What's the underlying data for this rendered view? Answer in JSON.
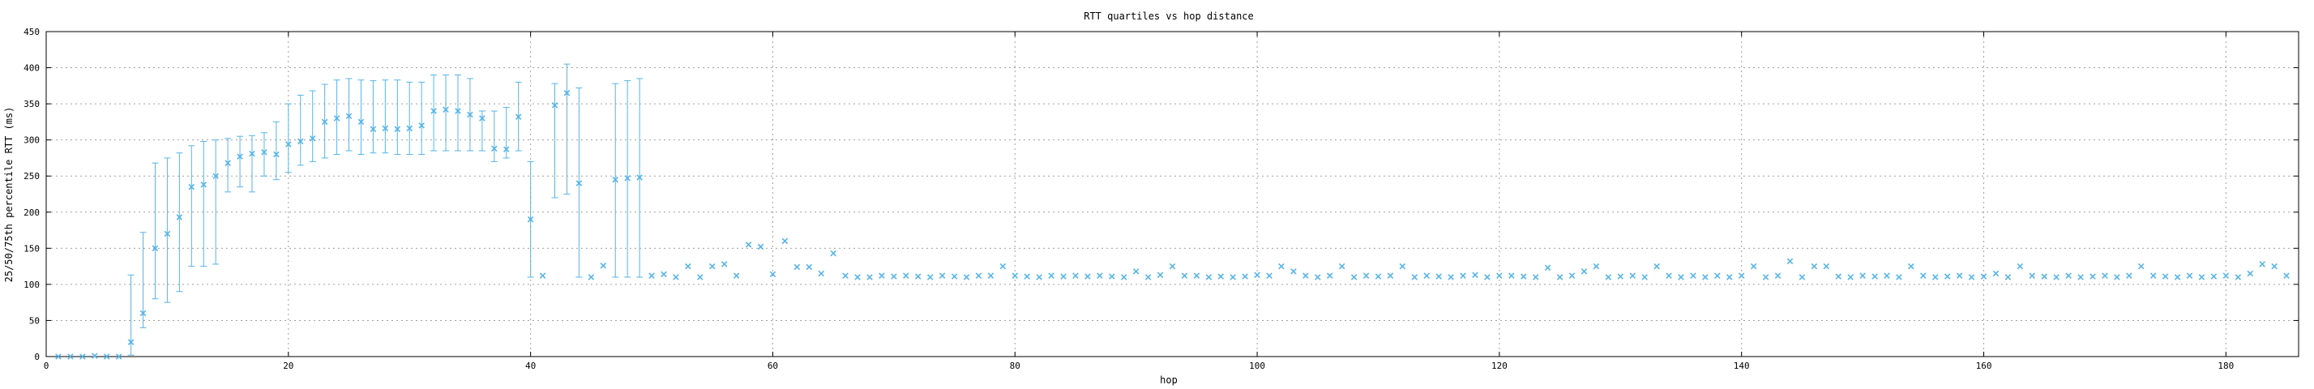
{
  "chart_data": {
    "type": "scatter",
    "title": "RTT quartiles vs hop distance",
    "xlabel": "hop",
    "ylabel": "25/50/75th percentile RTT (ms)",
    "xlim": [
      0,
      186
    ],
    "ylim": [
      0,
      450
    ],
    "xticks": [
      0,
      20,
      40,
      60,
      80,
      100,
      120,
      140,
      160,
      180
    ],
    "yticks": [
      0,
      50,
      100,
      150,
      200,
      250,
      300,
      350,
      400,
      450
    ],
    "grid": true,
    "series": [
      {
        "color": "#56b4e9",
        "marker": "x",
        "points": [
          {
            "x": 1,
            "y": 0
          },
          {
            "x": 2,
            "y": 0
          },
          {
            "x": 3,
            "y": 0
          },
          {
            "x": 4,
            "y": 1
          },
          {
            "x": 5,
            "y": 0
          },
          {
            "x": 6,
            "y": 0
          },
          {
            "x": 7,
            "y": 20,
            "lo": 2,
            "hi": 113
          },
          {
            "x": 8,
            "y": 60,
            "lo": 40,
            "hi": 172
          },
          {
            "x": 9,
            "y": 150,
            "lo": 80,
            "hi": 268
          },
          {
            "x": 10,
            "y": 170,
            "lo": 75,
            "hi": 275
          },
          {
            "x": 11,
            "y": 193,
            "lo": 90,
            "hi": 282
          },
          {
            "x": 12,
            "y": 235,
            "lo": 125,
            "hi": 292
          },
          {
            "x": 13,
            "y": 238,
            "lo": 125,
            "hi": 298
          },
          {
            "x": 14,
            "y": 250,
            "lo": 128,
            "hi": 300
          },
          {
            "x": 15,
            "y": 268,
            "lo": 228,
            "hi": 302
          },
          {
            "x": 16,
            "y": 277,
            "lo": 235,
            "hi": 305
          },
          {
            "x": 17,
            "y": 281,
            "lo": 228,
            "hi": 306
          },
          {
            "x": 18,
            "y": 283,
            "lo": 250,
            "hi": 310
          },
          {
            "x": 19,
            "y": 280,
            "lo": 245,
            "hi": 325
          },
          {
            "x": 20,
            "y": 294,
            "lo": 255,
            "hi": 350
          },
          {
            "x": 21,
            "y": 298,
            "lo": 265,
            "hi": 362
          },
          {
            "x": 22,
            "y": 302,
            "lo": 270,
            "hi": 368
          },
          {
            "x": 23,
            "y": 325,
            "lo": 275,
            "hi": 377
          },
          {
            "x": 24,
            "y": 330,
            "lo": 280,
            "hi": 383
          },
          {
            "x": 25,
            "y": 333,
            "lo": 285,
            "hi": 385
          },
          {
            "x": 26,
            "y": 325,
            "lo": 280,
            "hi": 383
          },
          {
            "x": 27,
            "y": 315,
            "lo": 282,
            "hi": 382
          },
          {
            "x": 28,
            "y": 316,
            "lo": 282,
            "hi": 383
          },
          {
            "x": 29,
            "y": 315,
            "lo": 280,
            "hi": 383
          },
          {
            "x": 30,
            "y": 316,
            "lo": 280,
            "hi": 380
          },
          {
            "x": 31,
            "y": 320,
            "lo": 280,
            "hi": 380
          },
          {
            "x": 32,
            "y": 340,
            "lo": 285,
            "hi": 390
          },
          {
            "x": 33,
            "y": 342,
            "lo": 285,
            "hi": 390
          },
          {
            "x": 34,
            "y": 340,
            "lo": 285,
            "hi": 390
          },
          {
            "x": 35,
            "y": 335,
            "lo": 285,
            "hi": 385
          },
          {
            "x": 36,
            "y": 330,
            "lo": 285,
            "hi": 340
          },
          {
            "x": 37,
            "y": 288,
            "lo": 270,
            "hi": 340
          },
          {
            "x": 38,
            "y": 287,
            "lo": 275,
            "hi": 345
          },
          {
            "x": 39,
            "y": 332,
            "lo": 285,
            "hi": 380
          },
          {
            "x": 40,
            "y": 190,
            "lo": 110,
            "hi": 270
          },
          {
            "x": 41,
            "y": 112
          },
          {
            "x": 42,
            "y": 348,
            "lo": 220,
            "hi": 378
          },
          {
            "x": 43,
            "y": 365,
            "lo": 225,
            "hi": 405
          },
          {
            "x": 44,
            "y": 240,
            "lo": 110,
            "hi": 372
          },
          {
            "x": 45,
            "y": 110
          },
          {
            "x": 46,
            "y": 126
          },
          {
            "x": 47,
            "y": 245,
            "lo": 110,
            "hi": 378
          },
          {
            "x": 48,
            "y": 247,
            "lo": 110,
            "hi": 382
          },
          {
            "x": 49,
            "y": 248,
            "lo": 110,
            "hi": 385
          },
          {
            "x": 50,
            "y": 112
          },
          {
            "x": 51,
            "y": 114
          },
          {
            "x": 52,
            "y": 110
          },
          {
            "x": 53,
            "y": 125
          },
          {
            "x": 54,
            "y": 110
          },
          {
            "x": 55,
            "y": 125
          },
          {
            "x": 56,
            "y": 128
          },
          {
            "x": 57,
            "y": 112
          },
          {
            "x": 58,
            "y": 155
          },
          {
            "x": 59,
            "y": 152
          },
          {
            "x": 60,
            "y": 114
          },
          {
            "x": 61,
            "y": 160
          },
          {
            "x": 62,
            "y": 124
          },
          {
            "x": 63,
            "y": 124
          },
          {
            "x": 64,
            "y": 115
          },
          {
            "x": 65,
            "y": 143
          },
          {
            "x": 66,
            "y": 112
          },
          {
            "x": 67,
            "y": 110
          },
          {
            "x": 68,
            "y": 110
          },
          {
            "x": 69,
            "y": 112
          },
          {
            "x": 70,
            "y": 111
          },
          {
            "x": 71,
            "y": 112
          },
          {
            "x": 72,
            "y": 111
          },
          {
            "x": 73,
            "y": 110
          },
          {
            "x": 74,
            "y": 112
          },
          {
            "x": 75,
            "y": 111
          },
          {
            "x": 76,
            "y": 110
          },
          {
            "x": 77,
            "y": 112
          },
          {
            "x": 78,
            "y": 112
          },
          {
            "x": 79,
            "y": 125
          },
          {
            "x": 80,
            "y": 112
          },
          {
            "x": 81,
            "y": 111
          },
          {
            "x": 82,
            "y": 110
          },
          {
            "x": 83,
            "y": 112
          },
          {
            "x": 84,
            "y": 111
          },
          {
            "x": 85,
            "y": 112
          },
          {
            "x": 86,
            "y": 111
          },
          {
            "x": 87,
            "y": 112
          },
          {
            "x": 88,
            "y": 111
          },
          {
            "x": 89,
            "y": 110
          },
          {
            "x": 90,
            "y": 118
          },
          {
            "x": 91,
            "y": 110
          },
          {
            "x": 92,
            "y": 113
          },
          {
            "x": 93,
            "y": 125
          },
          {
            "x": 94,
            "y": 112
          },
          {
            "x": 95,
            "y": 112
          },
          {
            "x": 96,
            "y": 110
          },
          {
            "x": 97,
            "y": 111
          },
          {
            "x": 98,
            "y": 110
          },
          {
            "x": 99,
            "y": 111
          },
          {
            "x": 100,
            "y": 113
          },
          {
            "x": 101,
            "y": 112
          },
          {
            "x": 102,
            "y": 125
          },
          {
            "x": 103,
            "y": 118
          },
          {
            "x": 104,
            "y": 112
          },
          {
            "x": 105,
            "y": 110
          },
          {
            "x": 106,
            "y": 112
          },
          {
            "x": 107,
            "y": 125
          },
          {
            "x": 108,
            "y": 110
          },
          {
            "x": 109,
            "y": 112
          },
          {
            "x": 110,
            "y": 111
          },
          {
            "x": 111,
            "y": 112
          },
          {
            "x": 112,
            "y": 125
          },
          {
            "x": 113,
            "y": 110
          },
          {
            "x": 114,
            "y": 112
          },
          {
            "x": 115,
            "y": 111
          },
          {
            "x": 116,
            "y": 110
          },
          {
            "x": 117,
            "y": 112
          },
          {
            "x": 118,
            "y": 113
          },
          {
            "x": 119,
            "y": 110
          },
          {
            "x": 120,
            "y": 112
          },
          {
            "x": 121,
            "y": 112
          },
          {
            "x": 122,
            "y": 111
          },
          {
            "x": 123,
            "y": 110
          },
          {
            "x": 124,
            "y": 123
          },
          {
            "x": 125,
            "y": 110
          },
          {
            "x": 126,
            "y": 112
          },
          {
            "x": 127,
            "y": 118
          },
          {
            "x": 128,
            "y": 125
          },
          {
            "x": 129,
            "y": 110
          },
          {
            "x": 130,
            "y": 111
          },
          {
            "x": 131,
            "y": 112
          },
          {
            "x": 132,
            "y": 110
          },
          {
            "x": 133,
            "y": 125
          },
          {
            "x": 134,
            "y": 112
          },
          {
            "x": 135,
            "y": 110
          },
          {
            "x": 136,
            "y": 112
          },
          {
            "x": 137,
            "y": 110
          },
          {
            "x": 138,
            "y": 112
          },
          {
            "x": 139,
            "y": 110
          },
          {
            "x": 140,
            "y": 112
          },
          {
            "x": 141,
            "y": 125
          },
          {
            "x": 142,
            "y": 110
          },
          {
            "x": 143,
            "y": 112
          },
          {
            "x": 144,
            "y": 132
          },
          {
            "x": 145,
            "y": 110
          },
          {
            "x": 146,
            "y": 125
          },
          {
            "x": 147,
            "y": 125
          },
          {
            "x": 148,
            "y": 111
          },
          {
            "x": 149,
            "y": 110
          },
          {
            "x": 150,
            "y": 112
          },
          {
            "x": 151,
            "y": 111
          },
          {
            "x": 152,
            "y": 112
          },
          {
            "x": 153,
            "y": 110
          },
          {
            "x": 154,
            "y": 125
          },
          {
            "x": 155,
            "y": 112
          },
          {
            "x": 156,
            "y": 110
          },
          {
            "x": 157,
            "y": 111
          },
          {
            "x": 158,
            "y": 112
          },
          {
            "x": 159,
            "y": 110
          },
          {
            "x": 160,
            "y": 111
          },
          {
            "x": 161,
            "y": 115
          },
          {
            "x": 162,
            "y": 110
          },
          {
            "x": 163,
            "y": 125
          },
          {
            "x": 164,
            "y": 112
          },
          {
            "x": 165,
            "y": 111
          },
          {
            "x": 166,
            "y": 110
          },
          {
            "x": 167,
            "y": 112
          },
          {
            "x": 168,
            "y": 110
          },
          {
            "x": 169,
            "y": 111
          },
          {
            "x": 170,
            "y": 112
          },
          {
            "x": 171,
            "y": 110
          },
          {
            "x": 172,
            "y": 112
          },
          {
            "x": 173,
            "y": 125
          },
          {
            "x": 174,
            "y": 112
          },
          {
            "x": 175,
            "y": 111
          },
          {
            "x": 176,
            "y": 110
          },
          {
            "x": 177,
            "y": 112
          },
          {
            "x": 178,
            "y": 110
          },
          {
            "x": 179,
            "y": 111
          },
          {
            "x": 180,
            "y": 112
          },
          {
            "x": 181,
            "y": 110
          },
          {
            "x": 182,
            "y": 115
          },
          {
            "x": 183,
            "y": 128
          },
          {
            "x": 184,
            "y": 125
          },
          {
            "x": 185,
            "y": 112
          }
        ]
      }
    ]
  }
}
